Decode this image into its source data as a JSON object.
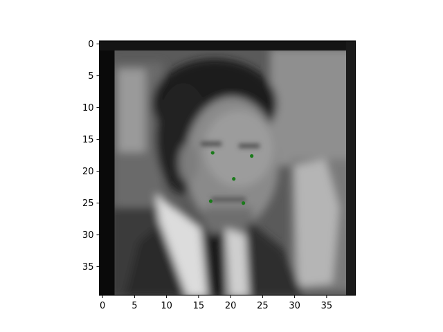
{
  "chart_data": {
    "type": "scatter",
    "background_image": {
      "kind": "grayscale-photo",
      "subject": "man-in-suit-face",
      "grid_size": [
        40,
        40
      ]
    },
    "xlim": [
      -0.5,
      39.5
    ],
    "ylim": [
      39.5,
      -0.5
    ],
    "y_inverted": true,
    "x_ticks": [
      0,
      5,
      10,
      15,
      20,
      25,
      30,
      35
    ],
    "y_ticks": [
      0,
      5,
      10,
      15,
      20,
      25,
      30,
      35
    ],
    "grid": false,
    "series": [
      {
        "marker_color": "#1a7a1a",
        "points": [
          {
            "x": 17.2,
            "y": 17.1
          },
          {
            "x": 23.3,
            "y": 17.6
          },
          {
            "x": 20.5,
            "y": 21.2
          },
          {
            "x": 16.9,
            "y": 24.7
          },
          {
            "x": 22.0,
            "y": 25.0
          }
        ]
      }
    ]
  }
}
